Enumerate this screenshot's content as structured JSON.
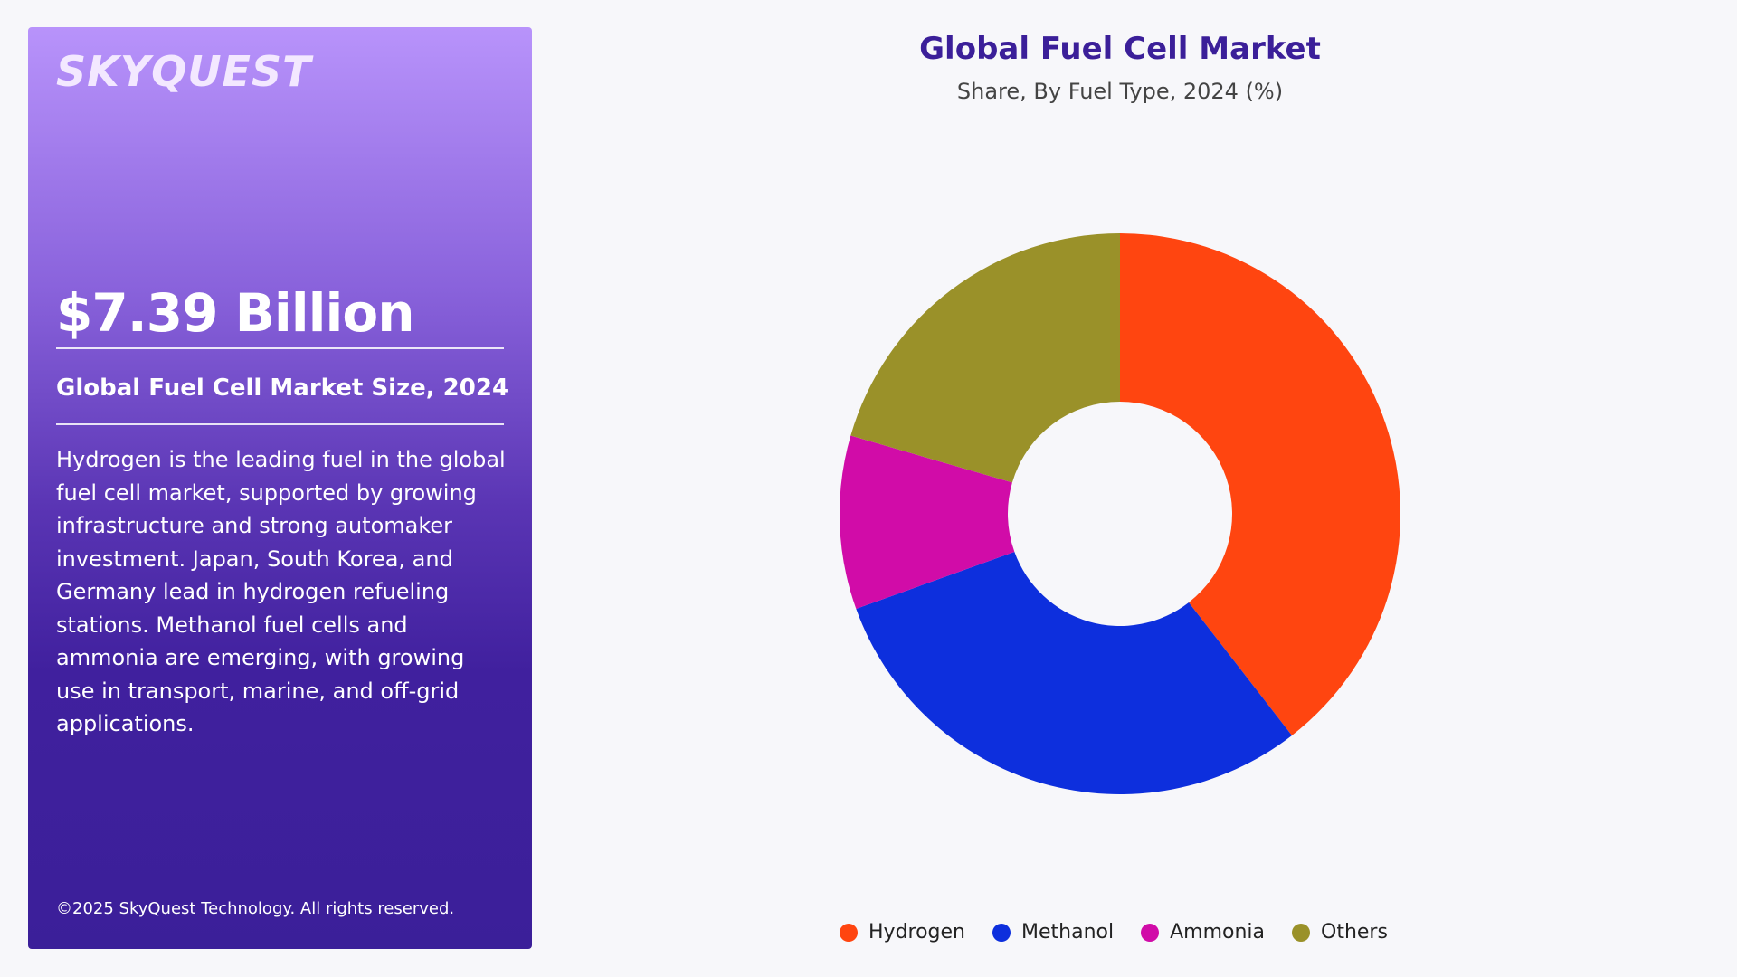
{
  "sidebar": {
    "logo": "SKYQUEST",
    "market_value": "$7.39 Billion",
    "market_size_label": "Global Fuel Cell Market Size, 2024",
    "description": "Hydrogen is the leading fuel in the global fuel cell market, supported by growing infrastructure and strong automaker investment. Japan, South Korea, and Germany lead in hydrogen refueling stations. Methanol fuel cells and ammonia are emerging, with growing use in transport, marine, and off-grid applications.",
    "copyright": "©2025 SkyQuest Technology. All rights reserved."
  },
  "chart_data": {
    "type": "pie",
    "title": "Global Fuel Cell Market",
    "subtitle": "Share, By Fuel Type, 2024 (%)",
    "categories": [
      "Hydrogen",
      "Methanol",
      "Ammonia",
      "Others"
    ],
    "values": [
      39.5,
      30.0,
      10.0,
      20.5
    ],
    "colors": [
      "#ff4510",
      "#0d2fdd",
      "#d10ca8",
      "#9a9129"
    ],
    "donut": true,
    "legend_position": "bottom"
  }
}
